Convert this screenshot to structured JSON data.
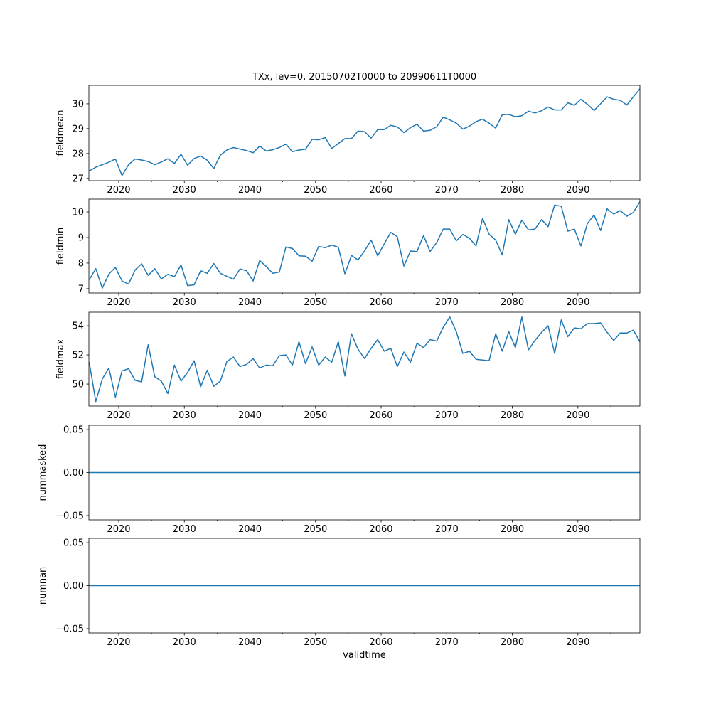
{
  "chart_data": [
    {
      "type": "line",
      "title": "TXx, lev=0, 20150702T0000 to 20990611T0000",
      "ylabel": "fieldmean",
      "xlabel": "",
      "xlim": [
        2015.45,
        2099.45
      ],
      "ylim": [
        26.91,
        30.74
      ],
      "yticks": [
        27,
        28,
        29,
        30
      ],
      "ytick_labels": [
        "27",
        "28",
        "29",
        "30"
      ],
      "x_start": 2015.5,
      "x_end": 2099.45,
      "values": [
        27.3,
        27.45,
        27.55,
        27.65,
        27.78,
        27.12,
        27.55,
        27.78,
        27.74,
        27.68,
        27.55,
        27.66,
        27.79,
        27.6,
        27.97,
        27.53,
        27.8,
        27.9,
        27.73,
        27.4,
        27.93,
        28.14,
        28.24,
        28.18,
        28.12,
        28.03,
        28.3,
        28.1,
        28.15,
        28.24,
        28.38,
        28.07,
        28.14,
        28.17,
        28.57,
        28.55,
        28.64,
        28.2,
        28.4,
        28.6,
        28.6,
        28.9,
        28.88,
        28.62,
        28.96,
        28.96,
        29.13,
        29.07,
        28.84,
        29.04,
        29.18,
        28.9,
        28.93,
        29.08,
        29.46,
        29.35,
        29.22,
        28.98,
        29.1,
        29.28,
        29.38,
        29.22,
        29.02,
        29.56,
        29.57,
        29.48,
        29.52,
        29.7,
        29.63,
        29.72,
        29.87,
        29.75,
        29.75,
        30.04,
        29.94,
        30.18,
        29.98,
        29.73,
        30.0,
        30.28,
        30.18,
        30.14,
        29.95,
        30.28,
        30.6
      ]
    },
    {
      "type": "line",
      "ylabel": "fieldmin",
      "xlim": [
        2015.45,
        2099.45
      ],
      "ylim": [
        6.83,
        10.5
      ],
      "yticks": [
        7,
        8,
        9,
        10
      ],
      "ytick_labels": [
        "7",
        "8",
        "9",
        "10"
      ],
      "x_start": 2015.5,
      "x_end": 2099.45,
      "values": [
        7.35,
        7.78,
        7.02,
        7.57,
        7.83,
        7.3,
        7.18,
        7.73,
        7.97,
        7.52,
        7.78,
        7.38,
        7.56,
        7.47,
        7.93,
        7.12,
        7.15,
        7.7,
        7.6,
        7.98,
        7.6,
        7.48,
        7.37,
        7.77,
        7.7,
        7.3,
        8.1,
        7.87,
        7.6,
        7.65,
        8.63,
        8.57,
        8.28,
        8.27,
        8.07,
        8.65,
        8.6,
        8.7,
        8.62,
        7.58,
        8.3,
        8.12,
        8.47,
        8.9,
        8.28,
        8.75,
        9.2,
        9.03,
        7.88,
        8.47,
        8.45,
        9.08,
        8.45,
        8.8,
        9.33,
        9.33,
        8.87,
        9.12,
        8.97,
        8.67,
        9.75,
        9.13,
        8.9,
        8.32,
        9.7,
        9.13,
        9.68,
        9.3,
        9.33,
        9.7,
        9.42,
        10.27,
        10.22,
        9.25,
        9.33,
        8.67,
        9.55,
        9.88,
        9.27,
        10.12,
        9.92,
        10.05,
        9.83,
        9.98,
        10.4
      ]
    },
    {
      "type": "line",
      "ylabel": "fieldmax",
      "xlim": [
        2015.45,
        2099.45
      ],
      "ylim": [
        48.49,
        54.93
      ],
      "yticks": [
        50,
        52,
        54
      ],
      "ytick_labels": [
        "50",
        "52",
        "54"
      ],
      "x_start": 2015.5,
      "x_end": 2099.45,
      "values": [
        51.5,
        48.8,
        50.35,
        51.1,
        49.1,
        50.9,
        51.05,
        50.25,
        50.15,
        52.7,
        50.5,
        50.2,
        49.35,
        51.3,
        50.2,
        50.8,
        51.6,
        49.8,
        50.95,
        49.85,
        50.2,
        51.55,
        51.85,
        51.2,
        51.35,
        51.75,
        51.1,
        51.3,
        51.25,
        51.95,
        52.0,
        51.3,
        52.9,
        51.4,
        52.55,
        51.3,
        51.85,
        51.5,
        52.9,
        50.55,
        53.45,
        52.4,
        51.75,
        52.45,
        53.05,
        52.25,
        52.45,
        51.2,
        52.2,
        51.5,
        52.8,
        52.5,
        53.05,
        52.95,
        53.9,
        54.6,
        53.6,
        52.1,
        52.25,
        51.7,
        51.65,
        51.6,
        53.45,
        52.25,
        53.6,
        52.5,
        54.6,
        52.35,
        53.0,
        53.55,
        54.0,
        52.1,
        54.4,
        53.25,
        53.85,
        53.8,
        54.15,
        54.15,
        54.2,
        53.55,
        53.0,
        53.5,
        53.5,
        53.7,
        52.9
      ]
    },
    {
      "type": "line",
      "ylabel": "nummasked",
      "xlim": [
        2015.45,
        2099.45
      ],
      "ylim": [
        -0.055,
        0.055
      ],
      "yticks": [
        -0.05,
        0,
        0.05
      ],
      "ytick_labels": [
        "−0.05",
        "0.00",
        "0.05"
      ],
      "x_start": 2015.5,
      "x_end": 2099.45,
      "constant": 0
    },
    {
      "type": "line",
      "ylabel": "numnan",
      "xlabel": "validtime",
      "xlim": [
        2015.45,
        2099.45
      ],
      "ylim": [
        -0.055,
        0.055
      ],
      "yticks": [
        -0.05,
        0,
        0.05
      ],
      "ytick_labels": [
        "−0.05",
        "0.00",
        "0.05"
      ],
      "x_start": 2015.5,
      "x_end": 2099.45,
      "constant": 0
    }
  ],
  "xtick_labels": [
    "2020",
    "2030",
    "2040",
    "2050",
    "2060",
    "2070",
    "2080",
    "2090"
  ],
  "line_color": "#1f77b4"
}
